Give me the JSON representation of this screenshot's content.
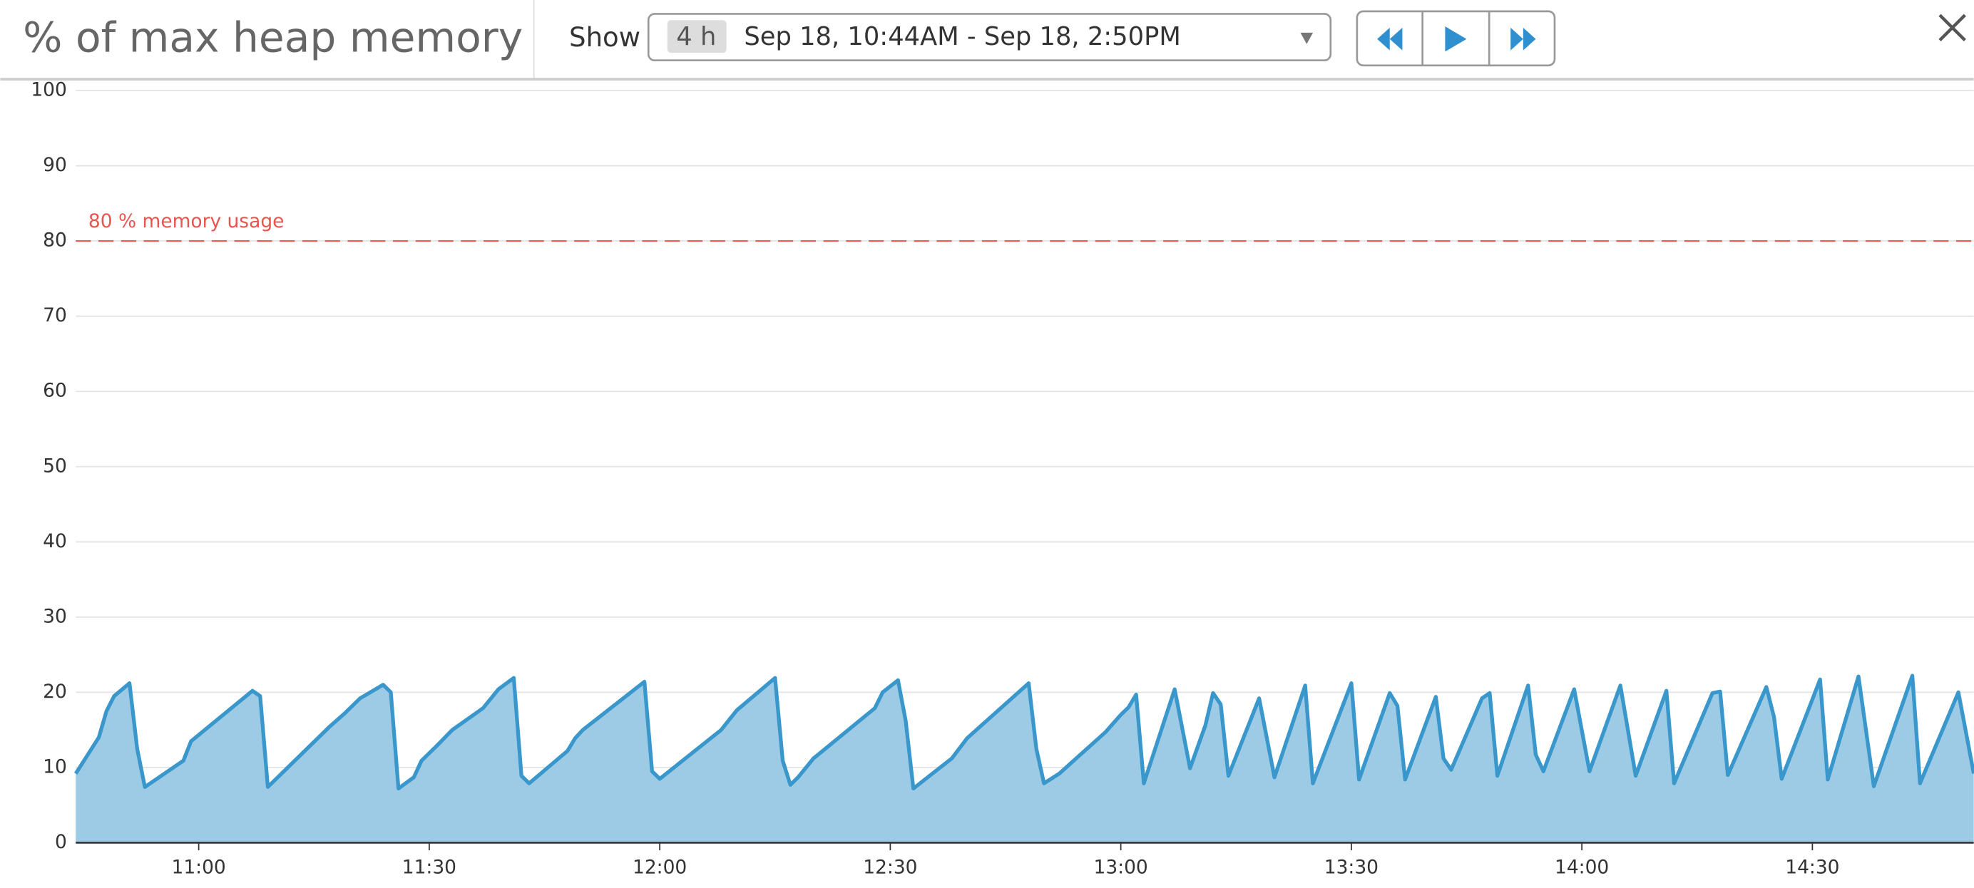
{
  "header": {
    "title": "% of max heap memory",
    "show_label": "Show",
    "duration": "4 h",
    "time_range": "Sep 18, 10:44AM - Sep 18, 2:50PM"
  },
  "chart_data": {
    "type": "area",
    "x": [
      "10:44",
      "10:47",
      "10:48",
      "10:49",
      "10:51",
      "10:52",
      "10:53",
      "10:58",
      "10:59",
      "11:07",
      "11:08",
      "11:09",
      "11:17",
      "11:19",
      "11:21",
      "11:24",
      "11:25",
      "11:26",
      "11:28",
      "11:29",
      "11:31",
      "11:33",
      "11:37",
      "11:39",
      "11:41",
      "11:42",
      "11:43",
      "11:48",
      "11:49",
      "11:50",
      "11:58",
      "11:59",
      "12:00",
      "12:08",
      "12:10",
      "12:15",
      "12:16",
      "12:17",
      "12:18",
      "12:20",
      "12:28",
      "12:29",
      "12:31",
      "12:32",
      "12:33",
      "12:38",
      "12:40",
      "12:48",
      "12:49",
      "12:50",
      "12:52",
      "12:58",
      "13:00",
      "13:01",
      "13:02",
      "13:03",
      "13:07",
      "13:09",
      "13:11",
      "13:12",
      "13:13",
      "13:14",
      "13:18",
      "13:20",
      "13:24",
      "13:25",
      "13:30",
      "13:31",
      "13:35",
      "13:36",
      "13:37",
      "13:41",
      "13:42",
      "13:43",
      "13:47",
      "13:48",
      "13:49",
      "13:53",
      "13:54",
      "13:55",
      "13:59",
      "14:01",
      "14:05",
      "14:07",
      "14:11",
      "14:12",
      "14:17",
      "14:18",
      "14:19",
      "14:24",
      "14:25",
      "14:26",
      "14:31",
      "14:32",
      "14:36",
      "14:38",
      "14:43",
      "14:44",
      "14:49",
      "14:51"
    ],
    "values": [
      9.2,
      14,
      17.5,
      19.5,
      21.2,
      12.5,
      7.4,
      10.9,
      13.5,
      20.2,
      19.5,
      7.4,
      15.4,
      17.2,
      19.2,
      21,
      20,
      7.2,
      8.7,
      10.9,
      12.9,
      15,
      17.9,
      20.4,
      21.9,
      8.9,
      7.9,
      12.2,
      13.9,
      15,
      21.4,
      9.5,
      8.5,
      15,
      17.6,
      21.9,
      10.9,
      7.7,
      8.7,
      11.2,
      17.9,
      20,
      21.6,
      16.2,
      7.2,
      11.2,
      13.9,
      21.2,
      12.5,
      7.9,
      9.2,
      14.7,
      17,
      18,
      19.7,
      7.9,
      20.4,
      9.9,
      15.6,
      19.9,
      18.4,
      8.9,
      19.2,
      8.7,
      20.9,
      7.9,
      21.2,
      8.4,
      19.9,
      18.2,
      8.4,
      19.4,
      11.2,
      9.7,
      19.2,
      19.9,
      8.9,
      20.9,
      11.7,
      9.5,
      20.4,
      9.5,
      20.9,
      8.9,
      20.2,
      7.9,
      19.9,
      20.1,
      9,
      20.7,
      16.7,
      8.5,
      21.7,
      8.4,
      22.1,
      7.5,
      22.2,
      7.9,
      20,
      9.2
    ],
    "color": "#3a97cb",
    "fill_color": "#9dcbe5",
    "xlim": [
      "10:44",
      "14:51"
    ],
    "xticks": [
      "11:00",
      "11:30",
      "12:00",
      "12:30",
      "13:00",
      "13:30",
      "14:00",
      "14:30"
    ],
    "ylim": [
      0,
      100
    ],
    "yticks": [
      0,
      10,
      20,
      30,
      40,
      50,
      60,
      70,
      80,
      90,
      100
    ],
    "grid": true,
    "threshold": {
      "value": 80,
      "label": "80 % memory usage",
      "color": "#e8554e"
    }
  }
}
